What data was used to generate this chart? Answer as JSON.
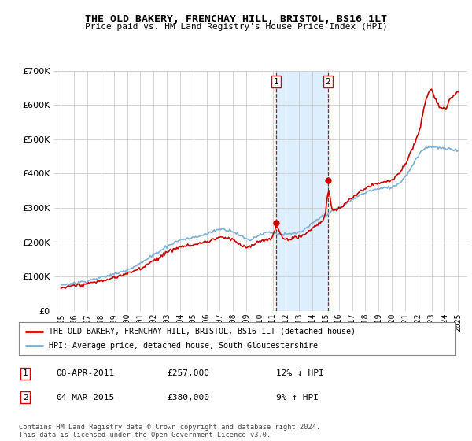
{
  "title": "THE OLD BAKERY, FRENCHAY HILL, BRISTOL, BS16 1LT",
  "subtitle": "Price paid vs. HM Land Registry's House Price Index (HPI)",
  "legend_line1": "THE OLD BAKERY, FRENCHAY HILL, BRISTOL, BS16 1LT (detached house)",
  "legend_line2": "HPI: Average price, detached house, South Gloucestershire",
  "annotation1_date": "08-APR-2011",
  "annotation1_price": "£257,000",
  "annotation1_pct": "12% ↓ HPI",
  "annotation1_year": 2011.27,
  "annotation1_value": 257000,
  "annotation2_date": "04-MAR-2015",
  "annotation2_price": "£380,000",
  "annotation2_pct": "9% ↑ HPI",
  "annotation2_year": 2015.17,
  "annotation2_value": 380000,
  "footer": "Contains HM Land Registry data © Crown copyright and database right 2024.\nThis data is licensed under the Open Government Licence v3.0.",
  "hpi_color": "#7bafd4",
  "price_color": "#cc0000",
  "shade_color": "#ddeeff",
  "grid_color": "#cccccc",
  "ylim": [
    0,
    700000
  ],
  "yticks": [
    0,
    100000,
    200000,
    300000,
    400000,
    500000,
    600000,
    700000
  ],
  "xmin": 1994.5,
  "xmax": 2025.7
}
